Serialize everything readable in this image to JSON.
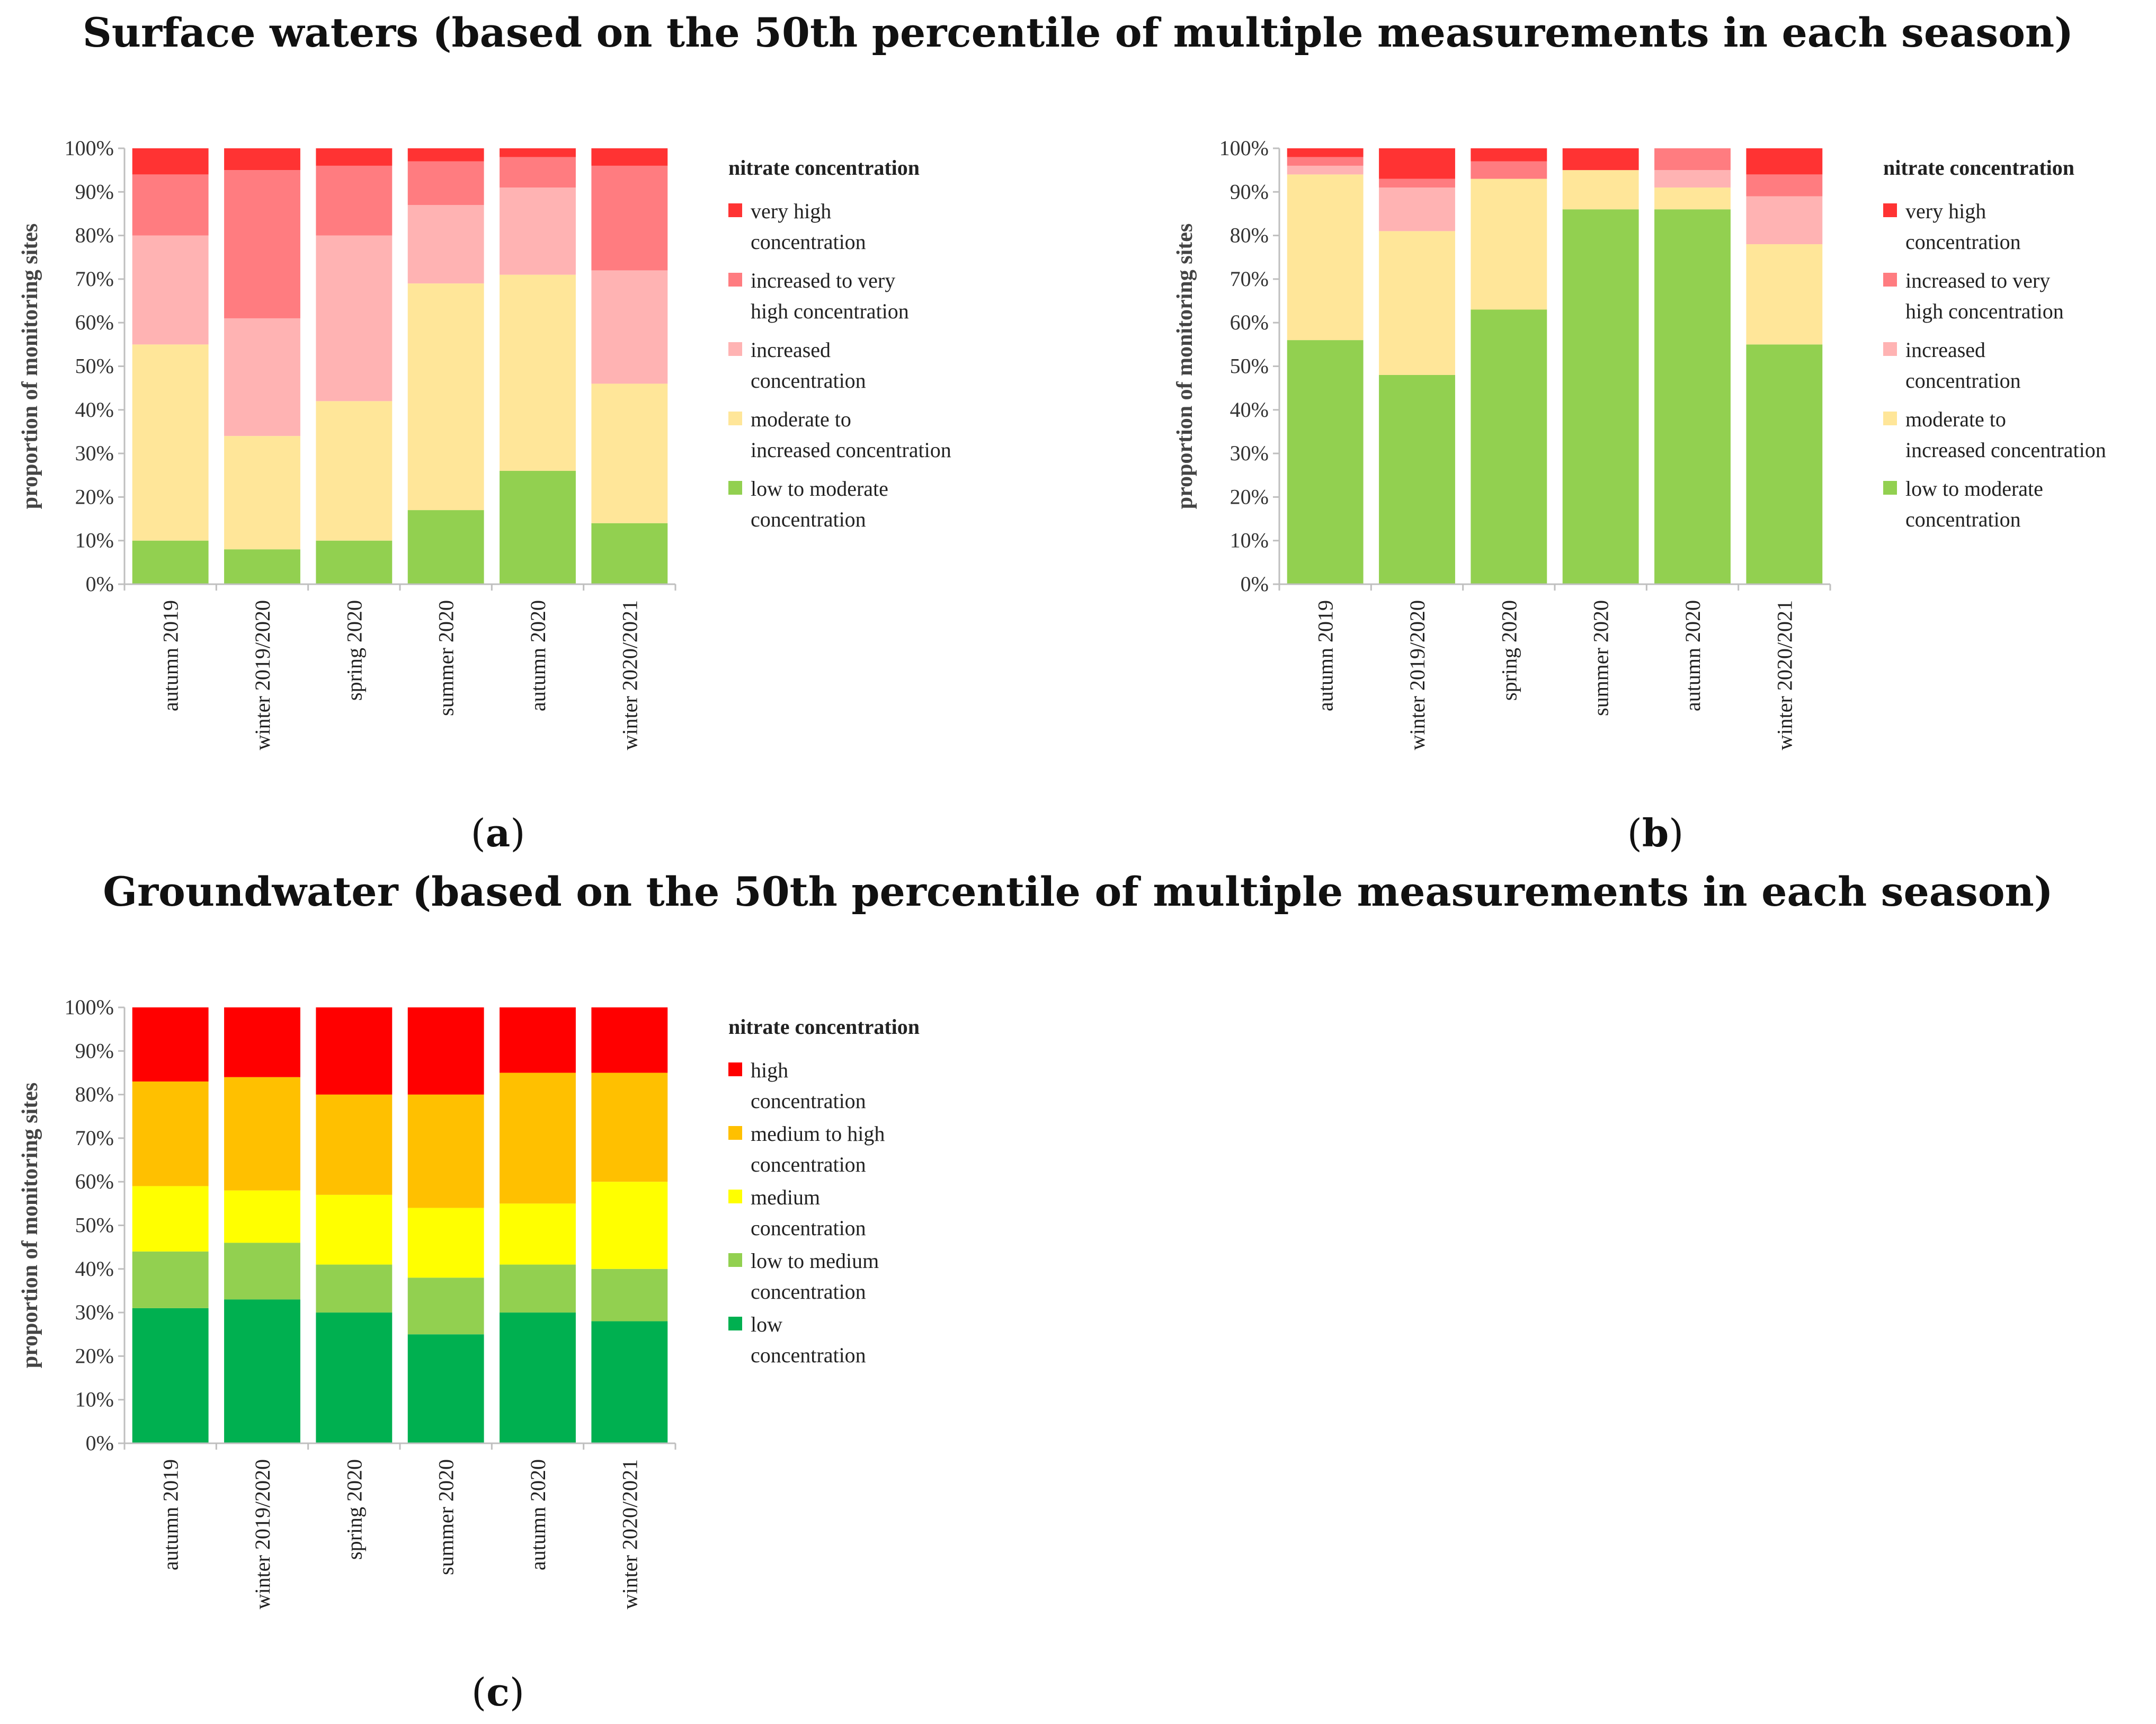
{
  "titles": {
    "surface": "Surface waters (based on the 50th percentile of multiple measurements in each season)",
    "groundwater": "Groundwater (based on the 50th percentile of multiple measurements in each season)"
  },
  "colors": {
    "surface": [
      "#92d050",
      "#ffe699",
      "#ffb3b3",
      "#ff7c80",
      "#ff3333"
    ],
    "ground": [
      "#00b050",
      "#92d050",
      "#ffff00",
      "#ffc000",
      "#ff0000"
    ]
  },
  "chart_data": [
    {
      "type": "bar",
      "stacked": true,
      "panel": "a",
      "categories": [
        "autumn 2019",
        "winter 2019/2020",
        "spring 2020",
        "summer 2020",
        "autumn 2020",
        "winter 2020/2021"
      ],
      "series": [
        {
          "name": "low to moderate concentration",
          "values": [
            10,
            8,
            10,
            17,
            26,
            14
          ]
        },
        {
          "name": "moderate to increased concentration",
          "values": [
            45,
            26,
            32,
            52,
            45,
            32
          ]
        },
        {
          "name": "increased concentration",
          "values": [
            25,
            27,
            38,
            18,
            20,
            26
          ]
        },
        {
          "name": "increased to very high concentration",
          "values": [
            14,
            34,
            16,
            10,
            7,
            24
          ]
        },
        {
          "name": "very high concentration",
          "values": [
            6,
            5,
            4,
            3,
            2,
            4
          ]
        }
      ],
      "ylabel": "proportion of monitoring sites",
      "yticks": [
        "0%",
        "10%",
        "20%",
        "30%",
        "40%",
        "50%",
        "60%",
        "70%",
        "80%",
        "90%",
        "100%"
      ],
      "ylim": [
        0,
        100
      ],
      "legend_title": "nitrate concentration",
      "legend_lines": [
        [
          "very high",
          "concentration"
        ],
        [
          "increased to very",
          "high concentration"
        ],
        [
          "increased",
          "concentration"
        ],
        [
          "moderate to",
          "increased concentration"
        ],
        [
          "low to moderate",
          "concentration"
        ]
      ]
    },
    {
      "type": "bar",
      "stacked": true,
      "panel": "b",
      "categories": [
        "autumn 2019",
        "winter 2019/2020",
        "spring 2020",
        "summer 2020",
        "autumn 2020",
        "winter 2020/2021"
      ],
      "series": [
        {
          "name": "low to moderate concentration",
          "values": [
            56,
            48,
            63,
            86,
            86,
            55
          ]
        },
        {
          "name": "moderate to increased concentration",
          "values": [
            38,
            33,
            30,
            9,
            5,
            23
          ]
        },
        {
          "name": "increased concentration",
          "values": [
            2,
            10,
            0,
            0,
            4,
            11
          ]
        },
        {
          "name": "increased to very high concentration",
          "values": [
            2,
            2,
            4,
            0,
            5,
            5
          ]
        },
        {
          "name": "very high concentration",
          "values": [
            2,
            7,
            3,
            5,
            0,
            6
          ]
        }
      ],
      "ylabel": "proportion of monitoring sites",
      "yticks": [
        "0%",
        "10%",
        "20%",
        "30%",
        "40%",
        "50%",
        "60%",
        "70%",
        "80%",
        "90%",
        "100%"
      ],
      "ylim": [
        0,
        100
      ],
      "legend_title": "nitrate concentration",
      "legend_lines": [
        [
          "very high",
          "concentration"
        ],
        [
          "increased to very",
          "high concentration"
        ],
        [
          "increased",
          "concentration"
        ],
        [
          "moderate to",
          "increased concentration"
        ],
        [
          "low to moderate",
          "concentration"
        ]
      ]
    },
    {
      "type": "bar",
      "stacked": true,
      "panel": "c",
      "categories": [
        "autumn 2019",
        "winter 2019/2020",
        "spring 2020",
        "summer 2020",
        "autumn 2020",
        "winter 2020/2021"
      ],
      "series": [
        {
          "name": "low concentration",
          "values": [
            31,
            33,
            30,
            25,
            30,
            28
          ]
        },
        {
          "name": "low to medium concentration",
          "values": [
            13,
            13,
            11,
            13,
            11,
            12
          ]
        },
        {
          "name": "medium concentration",
          "values": [
            15,
            12,
            16,
            16,
            14,
            20
          ]
        },
        {
          "name": "medium to high concentration",
          "values": [
            24,
            26,
            23,
            26,
            30,
            25
          ]
        },
        {
          "name": "high concentration",
          "values": [
            17,
            16,
            20,
            20,
            15,
            15
          ]
        }
      ],
      "ylabel": "proportion of monitoring sites",
      "yticks": [
        "0%",
        "10%",
        "20%",
        "30%",
        "40%",
        "50%",
        "60%",
        "70%",
        "80%",
        "90%",
        "100%"
      ],
      "ylim": [
        0,
        100
      ],
      "legend_title": "nitrate concentration",
      "legend_lines": [
        [
          "high",
          "concentration"
        ],
        [
          "medium to high",
          "concentration"
        ],
        [
          "medium",
          "concentration"
        ],
        [
          "low to medium",
          "concentration"
        ],
        [
          "low",
          "concentration"
        ]
      ]
    }
  ]
}
